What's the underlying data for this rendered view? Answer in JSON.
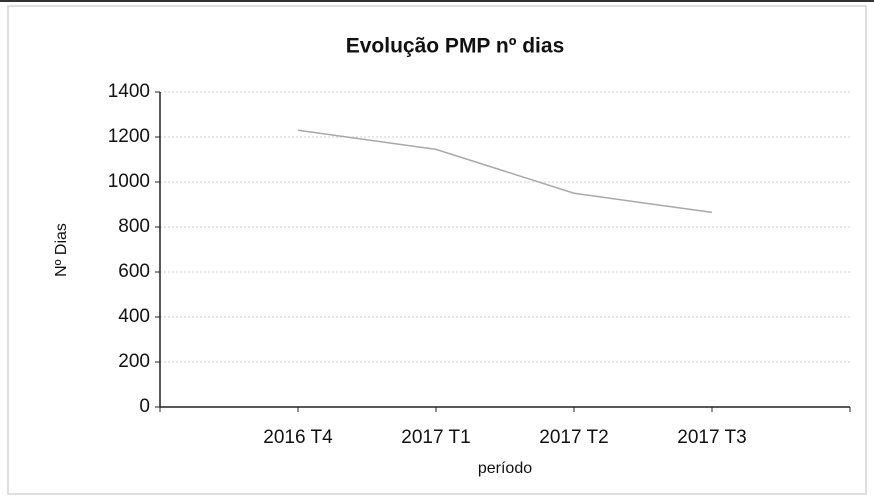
{
  "chart_data": {
    "type": "line",
    "title": "Evolução PMP nº dias",
    "x_label": "período",
    "y_label": "Nº Dias",
    "categories": [
      "2016 T4",
      "2017 T1",
      "2017 T2",
      "2017 T3"
    ],
    "series": [
      {
        "name": "PMP nº dias",
        "color": "#a8a8a8",
        "values": [
          1230,
          1145,
          950,
          865
        ]
      }
    ],
    "ylim": [
      0,
      1400
    ],
    "yticks": [
      0,
      200,
      400,
      600,
      800,
      1000,
      1200,
      1400
    ],
    "grid": true,
    "legend": false
  }
}
